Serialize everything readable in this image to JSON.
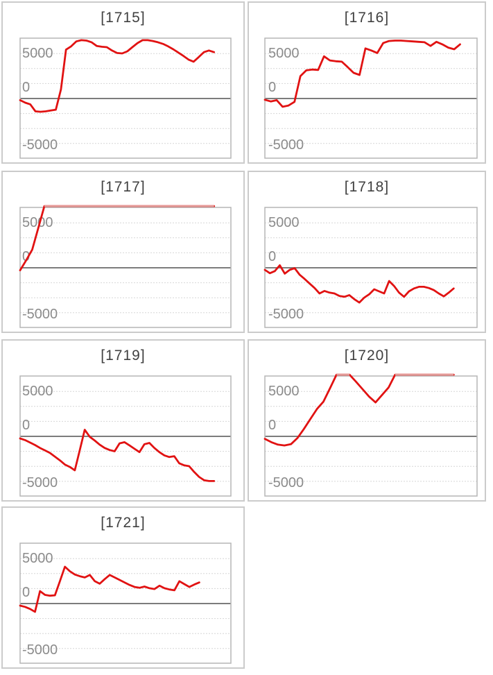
{
  "page": {
    "background": "#ffffff"
  },
  "y_axis": {
    "ticks": [
      "5000",
      "0",
      "-5000"
    ],
    "tick_values": [
      5000,
      0,
      -5000
    ]
  },
  "style": {
    "line_color": "#e11212",
    "cap_line_color": "#e39a97",
    "zero_line_color": "#7c7c7c",
    "grid_line_color": "#d6d6d6",
    "plot_border_color": "#b5b5b5",
    "panel_border_color": "#cbcbcb",
    "tick_label_color": "#8b8b8b",
    "title_color": "#404040",
    "background": "#ffffff"
  },
  "chart_data": [
    {
      "type": "line",
      "title": "[1715]",
      "ylim": [
        -7250,
        7250
      ],
      "cap_value": 7400,
      "x_fill": 0.92,
      "values": [
        -200,
        -500,
        -700,
        -1550,
        -1600,
        -1550,
        -1450,
        -1350,
        1100,
        5900,
        6300,
        6900,
        7050,
        7000,
        6800,
        6350,
        6250,
        6200,
        5800,
        5500,
        5450,
        5700,
        6200,
        6700,
        7050,
        7050,
        6950,
        6800,
        6600,
        6300,
        5950,
        5550,
        5150,
        4700,
        4450,
        5000,
        5600,
        5800,
        5600
      ]
    },
    {
      "type": "line",
      "title": "[1716]",
      "ylim": [
        -7250,
        7250
      ],
      "cap_value": 7400,
      "x_fill": 0.92,
      "values": [
        -150,
        -350,
        -200,
        -1000,
        -850,
        -400,
        2700,
        3400,
        3500,
        3450,
        5100,
        4600,
        4500,
        4450,
        3800,
        3100,
        2850,
        6050,
        5800,
        5500,
        6700,
        6950,
        7000,
        7000,
        6950,
        6900,
        6850,
        6800,
        6350,
        6850,
        6550,
        6150,
        5950,
        6550
      ]
    },
    {
      "type": "line",
      "title": "[1717]",
      "ylim": [
        -7250,
        7250
      ],
      "cap_value": 7400,
      "x_fill": 0.92,
      "values": [
        -300,
        900,
        2200,
        4800,
        7450,
        7450,
        7450,
        7450,
        7450,
        7450,
        7450,
        7450,
        7450,
        7450,
        7450,
        7450,
        7450,
        7450,
        7450,
        7450,
        7450,
        7450,
        7450,
        7450,
        7450,
        7450,
        7450,
        7450,
        7450,
        7450,
        7450,
        7450,
        7450
      ]
    },
    {
      "type": "line",
      "title": "[1718]",
      "ylim": [
        -7250,
        7250
      ],
      "cap_value": 7400,
      "x_fill": 0.89,
      "values": [
        -250,
        -650,
        -400,
        300,
        -700,
        -250,
        -50,
        -850,
        -1350,
        -1900,
        -2450,
        -3100,
        -2800,
        -3000,
        -3100,
        -3400,
        -3500,
        -3300,
        -3800,
        -4200,
        -3600,
        -3200,
        -2600,
        -2850,
        -3100,
        -1600,
        -2200,
        -3000,
        -3500,
        -2850,
        -2500,
        -2300,
        -2300,
        -2450,
        -2700,
        -3100,
        -3450,
        -3000,
        -2500
      ]
    },
    {
      "type": "line",
      "title": "[1719]",
      "ylim": [
        -7250,
        7250
      ],
      "cap_value": 7400,
      "x_fill": 0.92,
      "values": [
        -250,
        -450,
        -750,
        -1050,
        -1400,
        -1700,
        -2000,
        -2450,
        -2900,
        -3400,
        -3700,
        -4100,
        -1650,
        800,
        -50,
        -500,
        -1000,
        -1400,
        -1650,
        -1800,
        -850,
        -700,
        -1100,
        -1500,
        -1900,
        -950,
        -800,
        -1400,
        -1900,
        -2300,
        -2500,
        -2400,
        -3250,
        -3500,
        -3600,
        -4300,
        -4900,
        -5300,
        -5400,
        -5400
      ]
    },
    {
      "type": "line",
      "title": "[1720]",
      "ylim": [
        -7250,
        7250
      ],
      "cap_value": 7400,
      "x_fill": 0.89,
      "values": [
        -300,
        -700,
        -1000,
        -1100,
        -950,
        -200,
        900,
        2100,
        3300,
        4200,
        5800,
        7450,
        7450,
        7450,
        6600,
        5700,
        4800,
        4100,
        5000,
        5900,
        7450,
        7450,
        7450,
        7450,
        7450,
        7450,
        7450,
        7450,
        7450,
        7450
      ]
    },
    {
      "type": "line",
      "title": "[1721]",
      "ylim": [
        -7250,
        7250
      ],
      "cap_value": 7400,
      "x_fill": 0.85,
      "values": [
        -250,
        -400,
        -650,
        -1000,
        1500,
        1050,
        950,
        1000,
        2700,
        4450,
        3900,
        3500,
        3300,
        3150,
        3450,
        2700,
        2400,
        2950,
        3450,
        3150,
        2850,
        2550,
        2250,
        2000,
        1900,
        2050,
        1850,
        1750,
        2150,
        1850,
        1700,
        1600,
        2700,
        2350,
        2000,
        2300,
        2550
      ]
    }
  ]
}
